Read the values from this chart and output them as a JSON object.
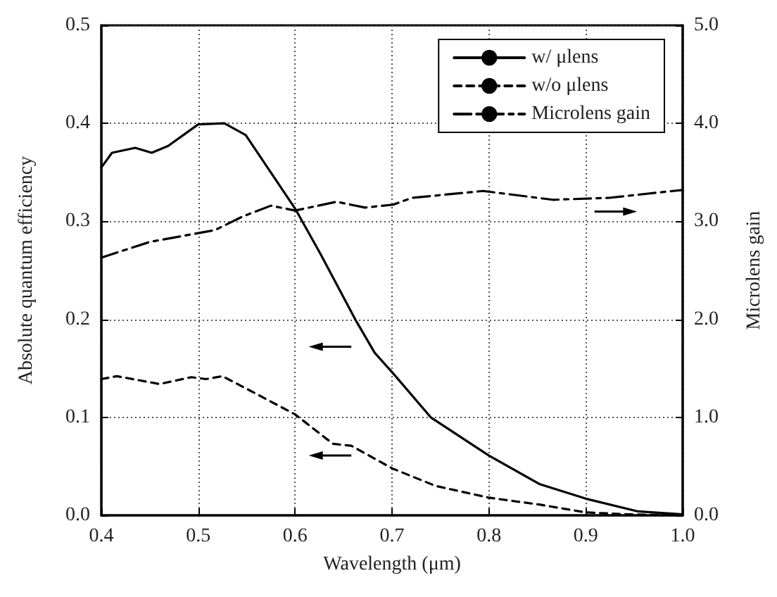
{
  "chart_data": {
    "type": "line",
    "xlabel": "Wavelength (μm)",
    "ylabel": "Absolute quantum efficiency",
    "y2label": "Microlens gain",
    "xlim": [
      0.4,
      1.0
    ],
    "xticks": [
      0.4,
      0.5,
      0.6,
      0.7,
      0.8,
      0.9,
      {
        "value": 1.0,
        "label": "1.0"
      }
    ],
    "ylim": [
      0,
      0.5
    ],
    "yticks": [
      {
        "value": 0,
        "label": "0.0"
      },
      0.1,
      0.2,
      0.3,
      0.4,
      0.5
    ],
    "y2lim": [
      0,
      5
    ],
    "y2ticks": [
      {
        "value": 0,
        "label": "0.0"
      },
      {
        "value": 1,
        "label": "1.0"
      },
      {
        "value": 2,
        "label": "2.0"
      },
      {
        "value": 3,
        "label": "3.0"
      },
      {
        "value": 4,
        "label": "4.0"
      },
      {
        "value": 5,
        "label": "5.0"
      }
    ],
    "grid": true,
    "legend": "top right",
    "marker": "none",
    "series": [
      {
        "name": "w/ μlens",
        "color": "#000000",
        "line_style": "solid",
        "x": [
          0.4,
          0.411,
          0.435,
          0.452,
          0.469,
          0.5,
          0.527,
          0.549,
          0.6,
          0.626,
          0.662,
          0.682,
          0.701,
          0.74,
          0.8,
          0.852,
          0.9,
          0.954,
          1.0
        ],
        "values": [
          0.355,
          0.37,
          0.375,
          0.37,
          0.377,
          0.399,
          0.4,
          0.388,
          0.313,
          0.267,
          0.2,
          0.166,
          0.145,
          0.1,
          0.061,
          0.032,
          0.017,
          0.004,
          0.001
        ]
      },
      {
        "name": "w/o μlens",
        "color": "#000000",
        "line_style": "dashed",
        "x": [
          0.4,
          0.416,
          0.46,
          0.493,
          0.508,
          0.525,
          0.556,
          0.6,
          0.639,
          0.658,
          0.7,
          0.745,
          0.8,
          0.852,
          0.9,
          0.944,
          1.0
        ],
        "values": [
          0.139,
          0.142,
          0.134,
          0.141,
          0.139,
          0.142,
          0.126,
          0.103,
          0.073,
          0.071,
          0.048,
          0.03,
          0.018,
          0.011,
          0.003,
          0.001,
          0
        ]
      },
      {
        "name": "Microlens gain",
        "color": "#000000",
        "line_style": "dashdot",
        "axis": "y2",
        "x": [
          0.4,
          0.45,
          0.5,
          0.517,
          0.546,
          0.575,
          0.6,
          0.643,
          0.672,
          0.701,
          0.721,
          0.794,
          0.866,
          0.924,
          0.99,
          1.0
        ],
        "values": [
          2.63,
          2.79,
          2.88,
          2.91,
          3.05,
          3.16,
          3.11,
          3.2,
          3.14,
          3.17,
          3.24,
          3.31,
          3.22,
          3.24,
          3.31,
          3.32
        ]
      }
    ]
  }
}
